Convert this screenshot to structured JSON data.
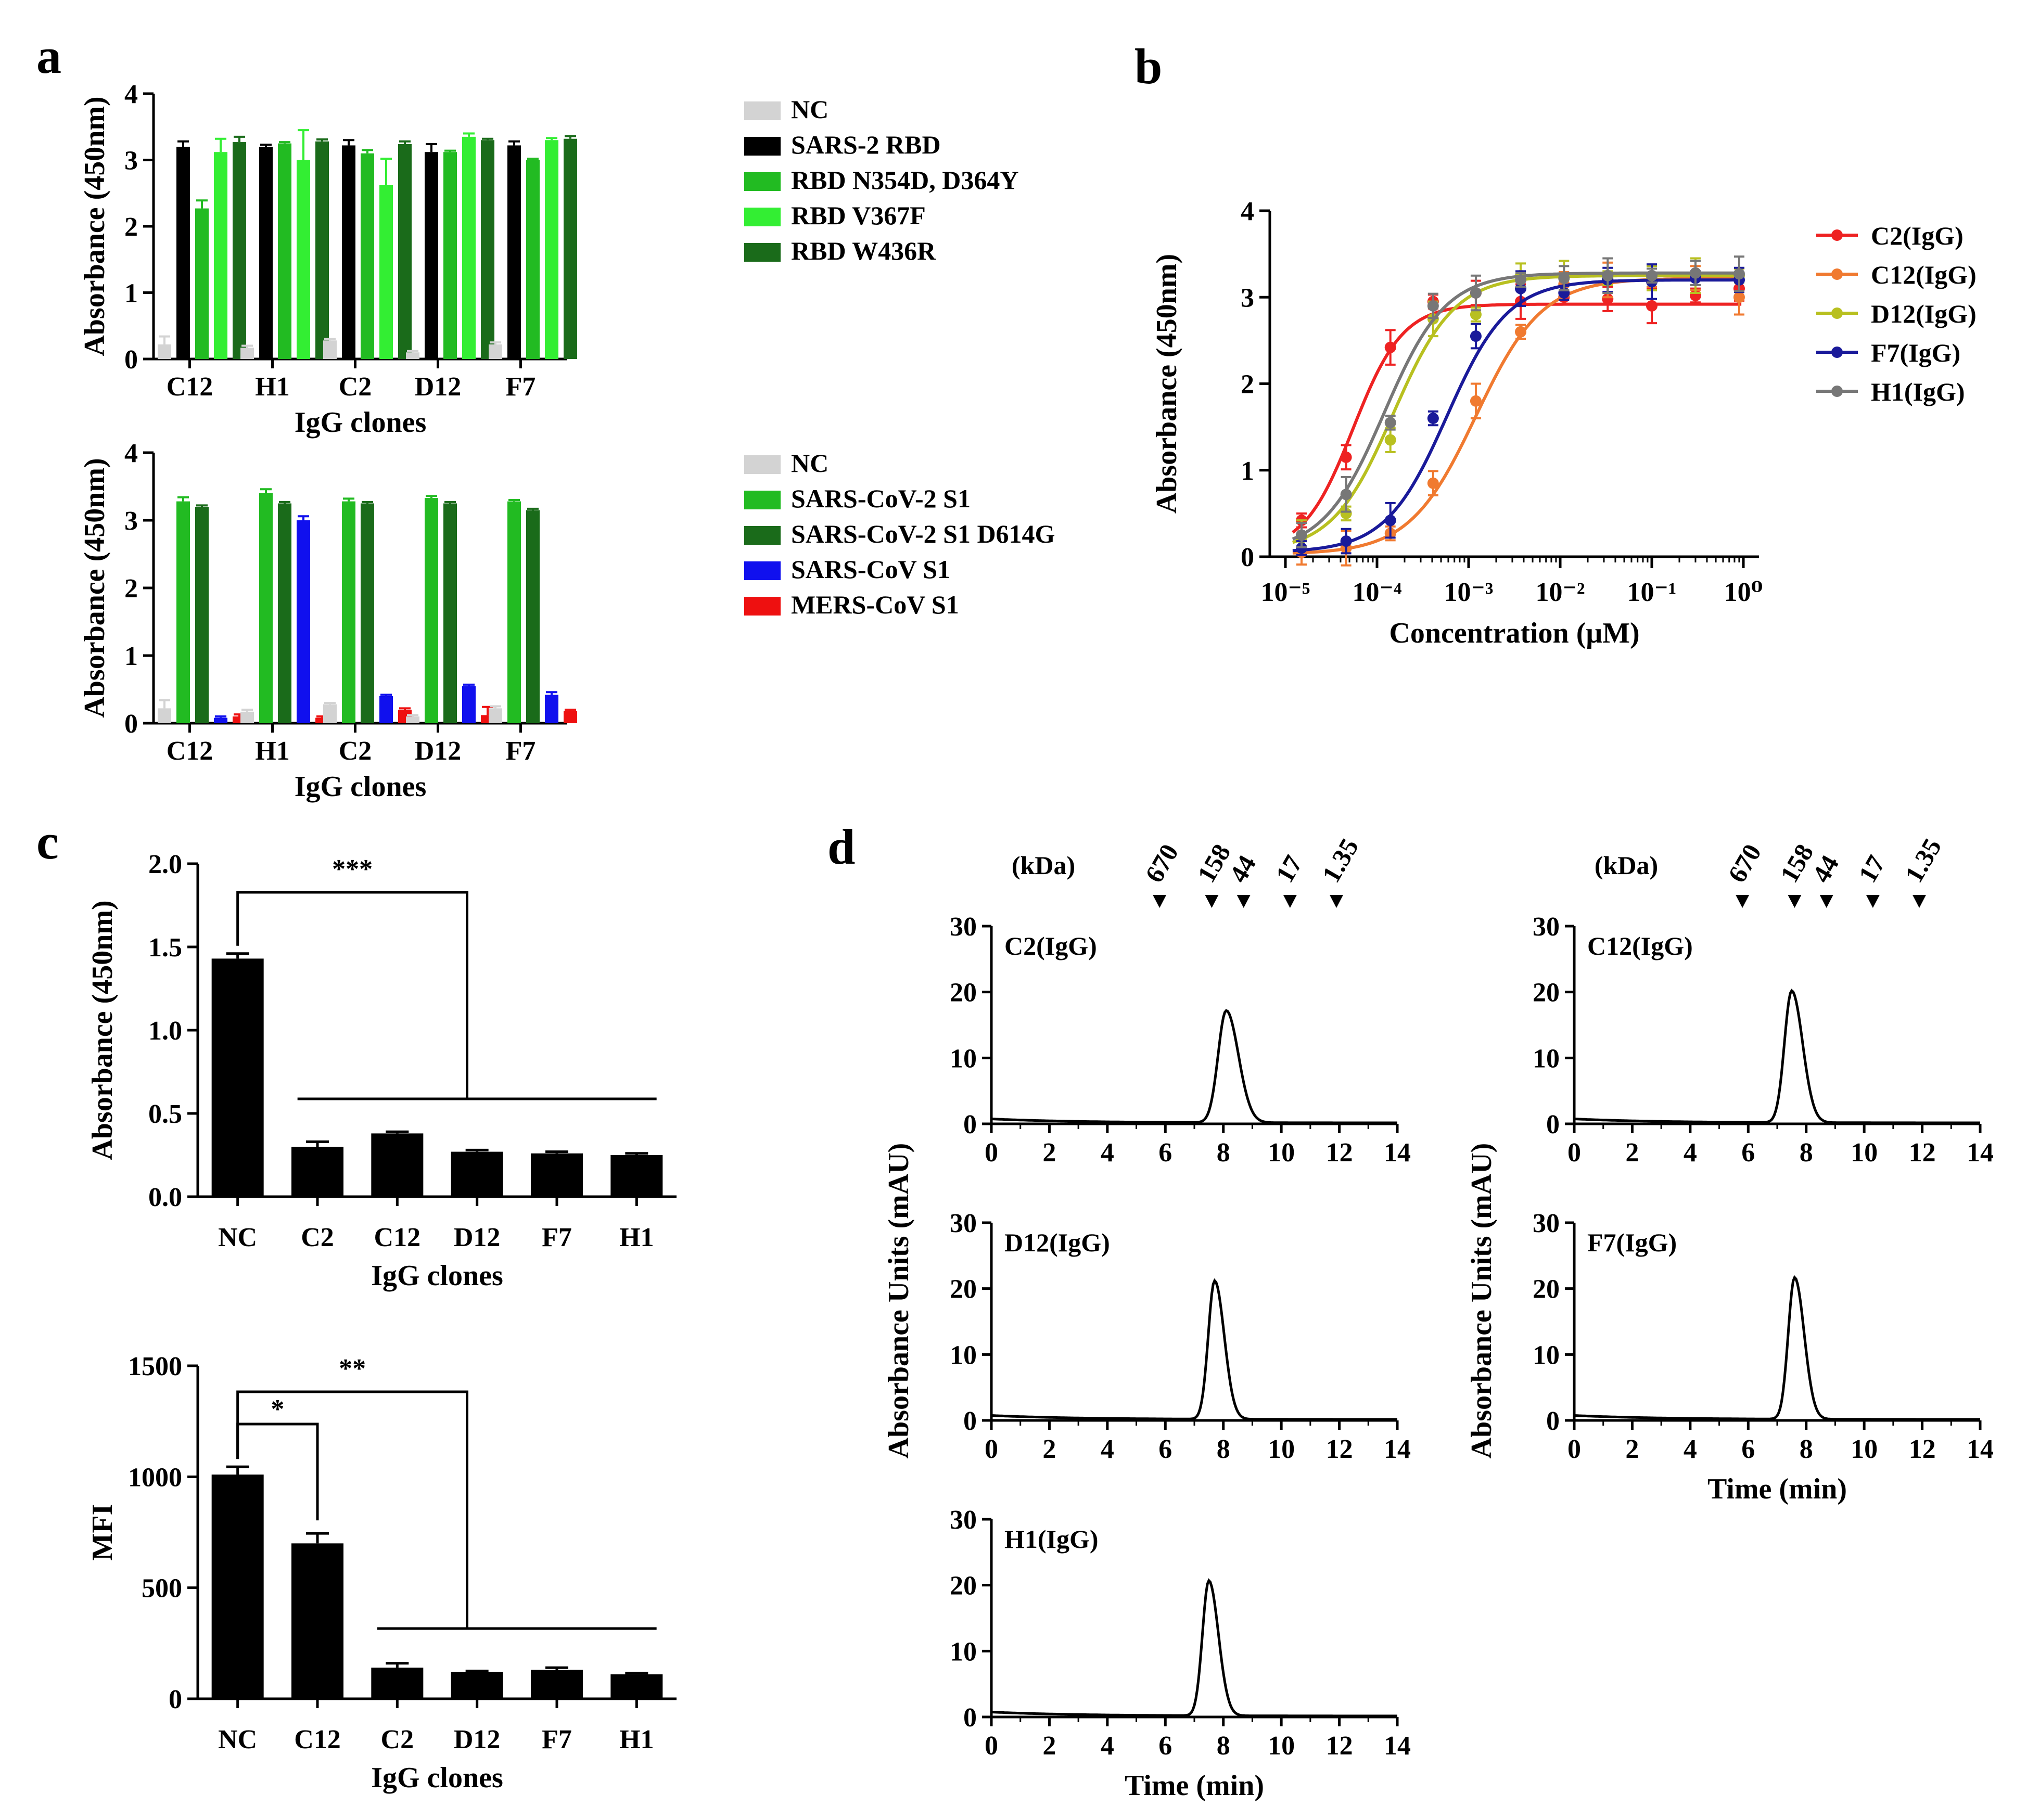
{
  "chart_data": [
    {
      "id": "a1",
      "panel_label": "a",
      "type": "bar",
      "categories": [
        "C12",
        "H1",
        "C2",
        "D12",
        "F7"
      ],
      "xlabel": "IgG clones",
      "ylabel": "Absorbance (450nm)",
      "ylim": [
        0,
        4
      ],
      "yticks": [
        0,
        1,
        2,
        3,
        4
      ],
      "legend_position": "right",
      "series": [
        {
          "name": "NC",
          "color": "#d3d3d3",
          "values": [
            0.22,
            0.17,
            0.28,
            0.1,
            0.22
          ],
          "errors": [
            0.12,
            0.03,
            0.02,
            0.02,
            0.03
          ]
        },
        {
          "name": "SARS-2 RBD",
          "color": "#000000",
          "values": [
            3.2,
            3.2,
            3.22,
            3.12,
            3.22
          ],
          "errors": [
            0.08,
            0.03,
            0.08,
            0.12,
            0.06
          ]
        },
        {
          "name": "RBD N354D, D364Y",
          "color": "#22bb22",
          "values": [
            2.27,
            3.25,
            3.1,
            3.12,
            3.0
          ],
          "errors": [
            0.12,
            0.02,
            0.05,
            0.02,
            0.02
          ]
        },
        {
          "name": "RBD V367F",
          "color": "#33ee33",
          "values": [
            3.12,
            3.0,
            2.62,
            3.35,
            3.3
          ],
          "errors": [
            0.2,
            0.45,
            0.4,
            0.05,
            0.03
          ]
        },
        {
          "name": "RBD W436R",
          "color": "#1a6b1a",
          "values": [
            3.27,
            3.28,
            3.24,
            3.3,
            3.32
          ],
          "errors": [
            0.08,
            0.03,
            0.04,
            0.02,
            0.04
          ]
        }
      ]
    },
    {
      "id": "a2",
      "panel_label": "",
      "type": "bar",
      "categories": [
        "C12",
        "H1",
        "C2",
        "D12",
        "F7"
      ],
      "xlabel": "IgG clones",
      "ylabel": "Absorbance (450nm)",
      "ylim": [
        0,
        4
      ],
      "yticks": [
        0,
        1,
        2,
        3,
        4
      ],
      "legend_position": "right",
      "series": [
        {
          "name": "NC",
          "color": "#d3d3d3",
          "values": [
            0.22,
            0.17,
            0.28,
            0.1,
            0.22
          ],
          "errors": [
            0.12,
            0.03,
            0.02,
            0.02,
            0.03
          ]
        },
        {
          "name": "SARS-CoV-2 S1",
          "color": "#22bb22",
          "values": [
            3.28,
            3.4,
            3.28,
            3.33,
            3.28
          ],
          "errors": [
            0.06,
            0.06,
            0.04,
            0.03,
            0.02
          ]
        },
        {
          "name": "SARS-CoV-2 S1 D614G",
          "color": "#1a6b1a",
          "values": [
            3.2,
            3.25,
            3.25,
            3.25,
            3.15
          ],
          "errors": [
            0.02,
            0.02,
            0.02,
            0.02,
            0.02
          ]
        },
        {
          "name": "SARS-CoV S1",
          "color": "#1010ee",
          "values": [
            0.08,
            3.0,
            0.4,
            0.55,
            0.42
          ],
          "errors": [
            0.02,
            0.06,
            0.02,
            0.02,
            0.04
          ]
        },
        {
          "name": "MERS-CoV S1",
          "color": "#ee1010",
          "values": [
            0.1,
            0.08,
            0.2,
            0.12,
            0.18
          ],
          "errors": [
            0.03,
            0.02,
            0.02,
            0.12,
            0.02
          ]
        }
      ]
    },
    {
      "id": "b",
      "panel_label": "b",
      "type": "line",
      "xscale": "log",
      "xlabel": "Concentration (μM)",
      "ylabel": "Absorbance (450nm)",
      "ylim": [
        0,
        4
      ],
      "yticks": [
        0,
        1,
        2,
        3,
        4
      ],
      "xticks": [
        "10⁻⁵",
        "10⁻⁴",
        "10⁻³",
        "10⁻²",
        "10⁻¹",
        "10⁰"
      ],
      "legend_position": "right",
      "x": [
        1.5e-05,
        4.6e-05,
        0.00014,
        0.00041,
        0.0012,
        0.0037,
        0.011,
        0.033,
        0.1,
        0.3,
        0.9
      ],
      "series": [
        {
          "name": "C2(IgG)",
          "color": "#ee2222",
          "values": [
            0.42,
            1.15,
            2.42,
            2.95,
            3.05,
            2.95,
            3.0,
            2.98,
            2.9,
            3.02,
            3.1
          ],
          "curve": {
            "bottom": 0.05,
            "top": 2.92,
            "ec50": 5.5e-05,
            "hill": 1.6
          }
        },
        {
          "name": "C12(IgG)",
          "color": "#f07a30",
          "values": [
            0.05,
            0.1,
            0.27,
            0.85,
            1.8,
            2.6,
            3.15,
            3.2,
            3.2,
            3.22,
            3.0
          ],
          "curve": {
            "bottom": 0.03,
            "top": 3.22,
            "ec50": 0.0012,
            "hill": 1.2
          }
        },
        {
          "name": "D12(IgG)",
          "color": "#b8c020",
          "values": [
            0.22,
            0.5,
            1.35,
            2.75,
            2.8,
            3.25,
            3.22,
            3.22,
            3.22,
            3.25,
            3.25
          ],
          "curve": {
            "bottom": 0.05,
            "top": 3.25,
            "ec50": 0.00015,
            "hill": 1.3
          }
        },
        {
          "name": "F7(IgG)",
          "color": "#1a1a9a",
          "values": [
            0.1,
            0.18,
            0.42,
            1.6,
            2.55,
            3.1,
            3.05,
            3.2,
            3.18,
            3.22,
            3.2
          ],
          "curve": {
            "bottom": 0.05,
            "top": 3.2,
            "ec50": 0.00058,
            "hill": 1.3
          }
        },
        {
          "name": "H1(IgG)",
          "color": "#777777",
          "values": [
            0.25,
            0.72,
            1.55,
            2.9,
            3.05,
            3.2,
            3.22,
            3.25,
            3.25,
            3.28,
            3.27
          ],
          "curve": {
            "bottom": 0.05,
            "top": 3.28,
            "ec50": 0.00012,
            "hill": 1.3
          }
        }
      ]
    },
    {
      "id": "c1",
      "panel_label": "c",
      "type": "bar",
      "categories": [
        "NC",
        "C2",
        "C12",
        "D12",
        "F7",
        "H1"
      ],
      "values": [
        1.43,
        0.3,
        0.38,
        0.27,
        0.26,
        0.25
      ],
      "errors": [
        0.03,
        0.03,
        0.01,
        0.01,
        0.01,
        0.01
      ],
      "color": "#000000",
      "xlabel": "IgG clones",
      "ylabel": "Absorbance (450nm)",
      "ylim": [
        0,
        2.0
      ],
      "yticks": [
        "0.0",
        "0.5",
        "1.0",
        "1.5",
        "2.0"
      ],
      "significance": [
        {
          "label": "***",
          "from": "NC",
          "to": [
            "C2",
            "H1"
          ]
        }
      ]
    },
    {
      "id": "c2",
      "panel_label": "",
      "type": "bar",
      "categories": [
        "NC",
        "C12",
        "C2",
        "D12",
        "F7",
        "H1"
      ],
      "values": [
        1010,
        700,
        140,
        120,
        130,
        110
      ],
      "errors": [
        35,
        45,
        20,
        5,
        10,
        5
      ],
      "color": "#000000",
      "xlabel": "IgG clones",
      "ylabel": "MFI",
      "ylim": [
        0,
        1500
      ],
      "yticks": [
        0,
        500,
        1000,
        1500
      ],
      "significance": [
        {
          "label": "*",
          "from": "NC",
          "to": [
            "C12"
          ]
        },
        {
          "label": "**",
          "from": "NC",
          "to": [
            "C2",
            "H1"
          ]
        }
      ]
    },
    {
      "id": "d",
      "panel_label": "d",
      "type": "line",
      "xlabel": "Time (min)",
      "ylabel": "Absorbance Units (mAU)",
      "xlim": [
        0,
        14
      ],
      "ylim": [
        0,
        30
      ],
      "xticks": [
        0,
        2,
        4,
        6,
        8,
        10,
        12,
        14
      ],
      "yticks": [
        0,
        10,
        20,
        30
      ],
      "marker_unit": "(kDa)",
      "markers": [
        {
          "label": "670",
          "time": 5.8
        },
        {
          "label": "158",
          "time": 7.6
        },
        {
          "label": "44",
          "time": 8.7
        },
        {
          "label": "17",
          "time": 10.3
        },
        {
          "label": "1.35",
          "time": 11.9
        }
      ],
      "subplots": [
        {
          "name": "C2(IgG)",
          "peak_time": 8.1,
          "peak_height": 17,
          "width": 0.28
        },
        {
          "name": "C12(IgG)",
          "peak_time": 7.5,
          "peak_height": 20,
          "width": 0.25
        },
        {
          "name": "D12(IgG)",
          "peak_time": 7.7,
          "peak_height": 21,
          "width": 0.22
        },
        {
          "name": "F7(IgG)",
          "peak_time": 7.6,
          "peak_height": 21.5,
          "width": 0.22
        },
        {
          "name": "H1(IgG)",
          "peak_time": 7.5,
          "peak_height": 20.5,
          "width": 0.22
        }
      ]
    }
  ]
}
